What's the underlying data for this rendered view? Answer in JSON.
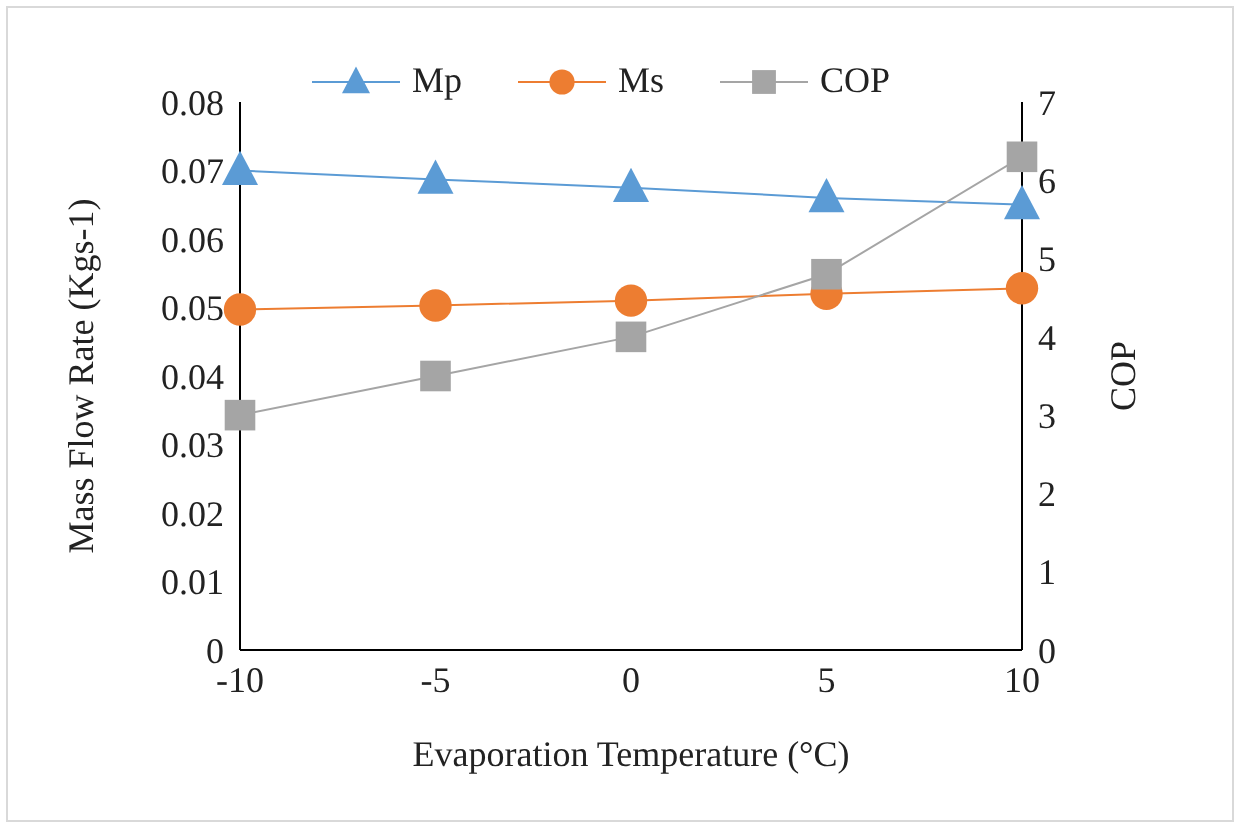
{
  "chart_data": {
    "type": "line",
    "xlabel": "Evaporation Temperature (°C)",
    "ylabel": "Mass Flow Rate (Kgs-1)",
    "y2label": "COP",
    "categories": [
      "-10",
      "-5",
      "0",
      "5",
      "10"
    ],
    "series": [
      {
        "name": "Mp",
        "color": "#5b9bd5",
        "marker": "triangle",
        "values": [
          0.07,
          0.0687,
          0.0675,
          0.066,
          0.065
        ]
      },
      {
        "name": "Ms",
        "color": "#ed7d31",
        "marker": "circle",
        "values": [
          0.0497,
          0.0503,
          0.051,
          0.052,
          0.0528
        ]
      },
      {
        "name": "COP",
        "color": "#a5a5a5",
        "marker": "square",
        "axis": "y2",
        "values": [
          3.0,
          3.5,
          4.0,
          4.8,
          6.3
        ]
      }
    ],
    "ylim": [
      0,
      0.08
    ],
    "yticks": [
      0,
      0.01,
      0.02,
      0.03,
      0.04,
      0.05,
      0.06,
      0.07,
      0.08
    ],
    "y2lim": [
      0,
      7
    ],
    "y2ticks": [
      0,
      1,
      2,
      3,
      4,
      5,
      6,
      7
    ],
    "grid": false,
    "legend": "top"
  }
}
